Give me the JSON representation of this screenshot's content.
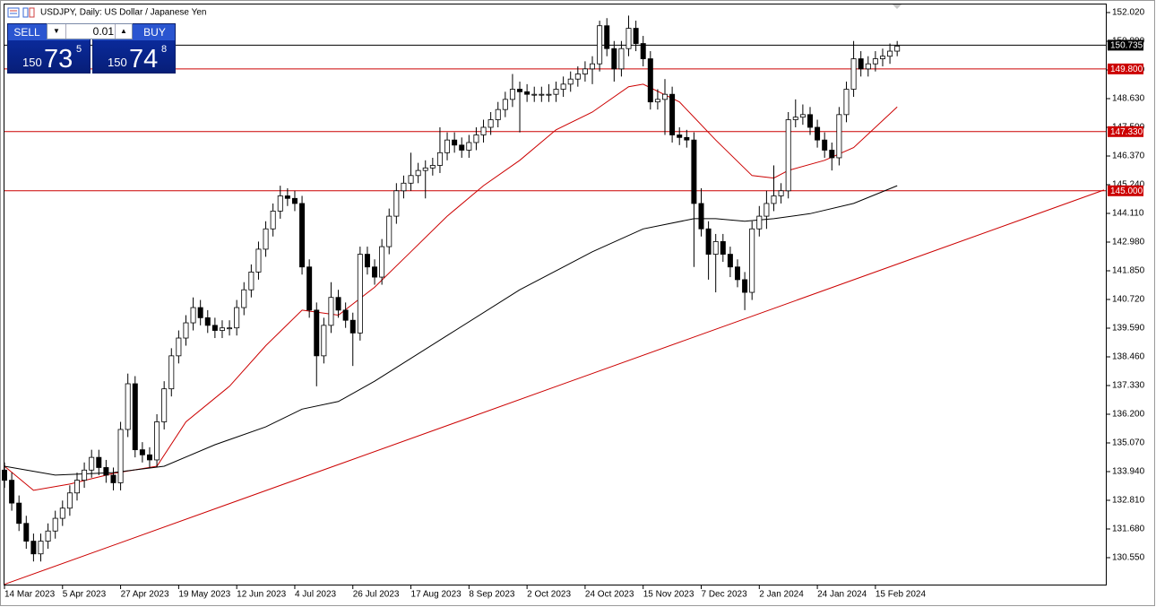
{
  "header": {
    "title": "USDJPY, Daily:  US Dollar / Japanese Yen"
  },
  "trade_panel": {
    "sell_label": "SELL",
    "lot": "0.01",
    "buy_label": "BUY",
    "sell_price": {
      "big": "150",
      "main": "73",
      "pip": "5"
    },
    "buy_price": {
      "big": "150",
      "main": "74",
      "pip": "8"
    }
  },
  "chart_data": {
    "type": "candlestick",
    "open": [
      134.0,
      133.6,
      132.7,
      131.9,
      131.2,
      130.7,
      131.2,
      131.6,
      132.1,
      132.5,
      133.1,
      133.6,
      134.0,
      134.5,
      134.1,
      133.8,
      133.5,
      135.6,
      137.4,
      134.8,
      134.6,
      134.4,
      135.9,
      137.2,
      138.5,
      139.2,
      139.8,
      140.4,
      140.0,
      139.7,
      139.5,
      139.6,
      139.6,
      140.4,
      141.1,
      141.8,
      142.7,
      143.5,
      144.2,
      144.8,
      144.7,
      144.5,
      142.0,
      140.3,
      138.5,
      139.7,
      140.8,
      140.3,
      139.9,
      139.4,
      142.5,
      142.0,
      141.6,
      142.8,
      144.0,
      145.0,
      145.3,
      145.6,
      145.8,
      145.9,
      146.0,
      146.5,
      147.0,
      146.8,
      146.6,
      146.9,
      147.2,
      147.5,
      147.8,
      148.2,
      148.6,
      149.0,
      148.9,
      148.8,
      148.8,
      148.8,
      148.8,
      149.0,
      149.2,
      149.4,
      149.6,
      149.8,
      150.0,
      151.5,
      150.6,
      149.8,
      150.6,
      151.4,
      150.8,
      150.2,
      148.5,
      148.6,
      148.8,
      147.2,
      147.1,
      147.0,
      144.5,
      143.5,
      142.5,
      143.0,
      142.5,
      142.0,
      141.5,
      141.0,
      143.5,
      144.0,
      144.5,
      144.8,
      145.0,
      147.8,
      147.9,
      148.0,
      147.5,
      147.0,
      146.6,
      146.3,
      148.0,
      149.0,
      150.2,
      149.8,
      150.0,
      150.2,
      150.3,
      150.5
    ],
    "high": [
      134.3,
      133.9,
      133.0,
      132.2,
      131.5,
      131.5,
      131.9,
      132.4,
      132.8,
      133.4,
      133.9,
      134.3,
      134.8,
      134.8,
      134.4,
      134.1,
      135.9,
      137.8,
      137.7,
      135.1,
      134.9,
      136.2,
      137.5,
      138.8,
      139.5,
      140.1,
      140.8,
      140.7,
      140.3,
      140.0,
      139.9,
      139.9,
      140.7,
      141.4,
      142.1,
      143.0,
      143.8,
      144.5,
      145.2,
      145.1,
      145.0,
      144.8,
      142.3,
      140.6,
      140.0,
      141.4,
      141.1,
      140.6,
      140.2,
      142.8,
      142.8,
      142.3,
      143.1,
      144.3,
      145.3,
      145.6,
      146.5,
      146.1,
      146.2,
      146.3,
      147.5,
      147.3,
      147.3,
      147.1,
      147.2,
      147.5,
      147.8,
      148.1,
      148.5,
      148.9,
      149.6,
      149.3,
      149.2,
      149.1,
      149.1,
      149.2,
      149.3,
      149.5,
      149.7,
      149.9,
      150.1,
      150.3,
      151.7,
      151.8,
      150.9,
      150.9,
      151.9,
      151.7,
      151.1,
      150.5,
      149.0,
      149.4,
      149.1,
      147.5,
      147.4,
      147.3,
      145.1,
      143.8,
      143.3,
      143.3,
      142.8,
      142.3,
      141.8,
      143.8,
      144.4,
      145.0,
      146.0,
      145.3,
      148.1,
      148.6,
      148.4,
      148.3,
      147.8,
      147.3,
      146.9,
      148.3,
      149.3,
      150.9,
      150.5,
      150.3,
      150.5,
      150.6,
      150.8,
      150.9
    ],
    "low": [
      133.3,
      132.4,
      131.6,
      130.9,
      130.4,
      130.4,
      130.9,
      131.3,
      131.8,
      132.2,
      132.8,
      133.3,
      133.7,
      133.8,
      133.5,
      133.2,
      133.2,
      135.3,
      134.5,
      134.3,
      134.1,
      134.1,
      135.6,
      136.9,
      138.2,
      138.9,
      139.5,
      139.7,
      139.4,
      139.2,
      139.2,
      139.3,
      139.3,
      140.1,
      140.8,
      141.5,
      142.4,
      143.2,
      143.9,
      144.4,
      144.2,
      141.7,
      140.0,
      137.3,
      138.2,
      139.4,
      140.0,
      139.6,
      138.1,
      139.1,
      141.7,
      141.3,
      141.3,
      142.5,
      143.7,
      144.7,
      145.0,
      145.3,
      144.7,
      145.6,
      145.7,
      146.2,
      146.5,
      146.3,
      146.3,
      146.6,
      146.9,
      147.2,
      147.5,
      147.9,
      148.3,
      147.3,
      148.5,
      148.5,
      148.5,
      148.5,
      148.5,
      148.7,
      148.9,
      149.1,
      149.3,
      149.2,
      149.7,
      150.3,
      149.3,
      149.5,
      150.3,
      150.5,
      149.9,
      148.2,
      148.2,
      147.2,
      146.9,
      146.8,
      146.7,
      142.0,
      143.2,
      141.5,
      141.0,
      142.2,
      141.6,
      141.2,
      140.3,
      140.7,
      143.2,
      143.5,
      144.2,
      144.5,
      144.7,
      147.5,
      147.6,
      147.2,
      146.7,
      146.3,
      145.8,
      146.0,
      147.7,
      148.7,
      149.5,
      149.5,
      149.7,
      149.9,
      150.0,
      150.3
    ],
    "close": [
      133.6,
      132.7,
      131.9,
      131.2,
      130.7,
      131.2,
      131.6,
      132.1,
      132.5,
      133.1,
      133.6,
      134.0,
      134.5,
      134.1,
      133.8,
      133.5,
      135.6,
      137.4,
      134.8,
      134.6,
      134.4,
      135.9,
      137.2,
      138.5,
      139.2,
      139.8,
      140.4,
      140.0,
      139.7,
      139.5,
      139.6,
      139.6,
      140.4,
      141.1,
      141.8,
      142.7,
      143.5,
      144.2,
      144.8,
      144.7,
      144.5,
      142.0,
      140.3,
      138.5,
      139.7,
      140.8,
      140.3,
      139.9,
      139.4,
      142.5,
      142.0,
      141.6,
      142.8,
      144.0,
      145.0,
      145.3,
      145.6,
      145.8,
      145.9,
      146.0,
      146.5,
      147.0,
      146.8,
      146.6,
      146.9,
      147.2,
      147.5,
      147.8,
      148.2,
      148.6,
      149.0,
      148.9,
      148.8,
      148.8,
      148.8,
      148.8,
      149.0,
      149.2,
      149.4,
      149.6,
      149.8,
      150.0,
      151.5,
      150.6,
      149.8,
      150.6,
      151.4,
      150.8,
      150.2,
      148.5,
      148.6,
      148.8,
      147.2,
      147.1,
      147.0,
      144.5,
      143.5,
      142.5,
      143.0,
      142.5,
      142.0,
      141.5,
      141.0,
      143.5,
      144.0,
      144.5,
      144.8,
      145.0,
      147.8,
      147.9,
      148.0,
      147.5,
      147.0,
      146.6,
      146.3,
      148.0,
      149.0,
      150.2,
      149.8,
      150.0,
      150.2,
      150.3,
      150.5,
      150.7
    ],
    "up_color": "#ffffff",
    "down_color": "#000000",
    "wick_color": "#000000",
    "ylim": [
      129.49,
      152.373
    ],
    "yticks": [
      {
        "value": 130.55,
        "label": "130.550"
      },
      {
        "value": 131.68,
        "label": "131.680"
      },
      {
        "value": 132.81,
        "label": "132.810"
      },
      {
        "value": 133.94,
        "label": "133.940"
      },
      {
        "value": 135.07,
        "label": "135.070"
      },
      {
        "value": 136.2,
        "label": "136.200"
      },
      {
        "value": 137.33,
        "label": "137.330"
      },
      {
        "value": 138.46,
        "label": "138.460"
      },
      {
        "value": 139.59,
        "label": "139.590"
      },
      {
        "value": 140.72,
        "label": "140.720"
      },
      {
        "value": 141.85,
        "label": "141.850"
      },
      {
        "value": 142.98,
        "label": "142.980"
      },
      {
        "value": 144.11,
        "label": "144.110"
      },
      {
        "value": 145.24,
        "label": "145.240"
      },
      {
        "value": 146.37,
        "label": "146.370"
      },
      {
        "value": 147.5,
        "label": "147.500"
      },
      {
        "value": 148.63,
        "label": "148.630"
      },
      {
        "value": 149.76,
        "label": "149.760"
      },
      {
        "value": 150.89,
        "label": "150.890"
      },
      {
        "value": 152.02,
        "label": "152.020"
      }
    ],
    "xlim": [
      0,
      151.5
    ],
    "xticks": [
      {
        "value": 0,
        "label": "14 Mar 2023"
      },
      {
        "value": 8,
        "label": "5 Apr 2023"
      },
      {
        "value": 16,
        "label": "27 Apr 2023"
      },
      {
        "value": 24,
        "label": "19 May 2023"
      },
      {
        "value": 32,
        "label": "12 Jun 2023"
      },
      {
        "value": 40,
        "label": "4 Jul 2023"
      },
      {
        "value": 48,
        "label": "26 Jul 2023"
      },
      {
        "value": 56,
        "label": "17 Aug 2023"
      },
      {
        "value": 64,
        "label": "8 Sep 2023"
      },
      {
        "value": 72,
        "label": "2 Oct 2023"
      },
      {
        "value": 80,
        "label": "24 Oct 2023"
      },
      {
        "value": 88,
        "label": "15 Nov 2023"
      },
      {
        "value": 96,
        "label": "7 Dec 2023"
      },
      {
        "value": 104,
        "label": "2 Jan 2024"
      },
      {
        "value": 112,
        "label": "24 Jan 2024"
      },
      {
        "value": 120,
        "label": "15 Feb 2024"
      }
    ],
    "moving_averages": [
      {
        "color": "#cc0000",
        "x": [
          0,
          4,
          9,
          15,
          21,
          25,
          31,
          36,
          41,
          46,
          51,
          56,
          61,
          66,
          71,
          76,
          81,
          86,
          88,
          93,
          98,
          103,
          106,
          108,
          113,
          117,
          123
        ],
        "values": [
          134.15,
          133.2,
          133.45,
          133.87,
          134.15,
          135.9,
          137.3,
          138.9,
          140.3,
          140.1,
          141.2,
          142.6,
          144.0,
          145.2,
          146.2,
          147.4,
          148.1,
          149.1,
          149.2,
          148.5,
          147.0,
          145.6,
          145.5,
          145.8,
          146.2,
          146.7,
          148.3
        ]
      },
      {
        "color": "#000000",
        "x": [
          0,
          7,
          15,
          22,
          29,
          36,
          41,
          46,
          51,
          61,
          71,
          81,
          88,
          95,
          98,
          102,
          106,
          111,
          117,
          123
        ],
        "values": [
          134.15,
          133.8,
          133.9,
          134.15,
          135.0,
          135.7,
          136.4,
          136.7,
          137.5,
          139.3,
          141.1,
          142.6,
          143.5,
          143.9,
          143.9,
          143.8,
          143.9,
          144.1,
          144.5,
          145.2
        ]
      }
    ],
    "levels": [
      {
        "value": 150.735,
        "label": "150.735",
        "color": "#000000"
      },
      {
        "value": 149.8,
        "label": "149.800",
        "color": "#cc0000"
      },
      {
        "value": 147.33,
        "label": "147.330",
        "color": "#cc0000"
      },
      {
        "value": 145.0,
        "label": "145.000",
        "color": "#cc0000"
      }
    ],
    "trendline": {
      "color": "#cc0000",
      "x": [
        0,
        151.5
      ],
      "values": [
        129.5,
        145.03
      ]
    },
    "grid": false
  }
}
